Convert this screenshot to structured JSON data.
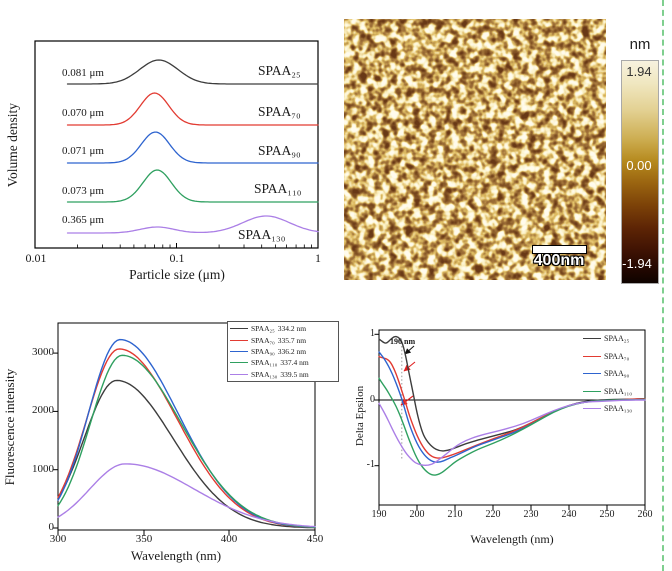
{
  "afm": {
    "scale_bar_label": "400nm",
    "colorbar": {
      "unit": "nm",
      "max": "1.94",
      "mid": "0.00",
      "min": "-1.94"
    }
  },
  "colors": {
    "black": "#3d3d3d",
    "red": "#e23b32",
    "blue": "#2e64cf",
    "green": "#2fa060",
    "purple": "#ab7fe6",
    "selection_dash": "#7fcf8f"
  },
  "chart_data": [
    {
      "type": "line",
      "title": "",
      "xlabel": "Particle size (μm)",
      "ylabel": "Volume density",
      "x_scale": "log",
      "xlim": [
        0.01,
        1
      ],
      "xtick_labels": [
        "0.01",
        "0.1",
        "1"
      ],
      "legend_position": "in-plot right",
      "series": [
        {
          "name": "SPAA₂₅",
          "size_label": "0.081 μm",
          "color": "#3d3d3d",
          "peaks": [
            {
              "center_um": 0.075,
              "height": 24,
              "sigma_decades": 0.135
            }
          ]
        },
        {
          "name": "SPAA₇₀",
          "size_label": "0.070 μm",
          "color": "#e23b32",
          "peaks": [
            {
              "center_um": 0.07,
              "height": 32,
              "sigma_decades": 0.1
            }
          ]
        },
        {
          "name": "SPAA₉₀",
          "size_label": "0.071 μm",
          "color": "#2e64cf",
          "peaks": [
            {
              "center_um": 0.071,
              "height": 31,
              "sigma_decades": 0.1
            }
          ]
        },
        {
          "name": "SPAA₁₁₀",
          "size_label": "0.073 μm",
          "color": "#2fa060",
          "peaks": [
            {
              "center_um": 0.073,
              "height": 32,
              "sigma_decades": 0.1
            }
          ]
        },
        {
          "name": "SPAA₁₃₀",
          "size_label": "0.365 μm",
          "color": "#ab7fe6",
          "peaks": [
            {
              "center_um": 0.073,
              "height": 6,
              "sigma_decades": 0.12
            },
            {
              "center_um": 0.43,
              "height": 17,
              "sigma_decades": 0.165
            }
          ]
        }
      ]
    },
    {
      "type": "line",
      "title": "",
      "xlabel": "Wavelength (nm)",
      "ylabel": "Fluorescence intensity",
      "xlim": [
        300,
        450
      ],
      "ylim": [
        0,
        3500
      ],
      "xtick_labels": [
        "300",
        "350",
        "400",
        "450"
      ],
      "ytick_labels": [
        "0",
        "1000",
        "2000",
        "3000"
      ],
      "legend_position": "top-right boxed",
      "series": [
        {
          "name": "SPAA₂₅",
          "peak_label": "334.2 nm",
          "peak_nm": 334.2,
          "peak_intensity": 2530,
          "sigma_left": 19,
          "sigma_right": 33,
          "color": "#3d3d3d"
        },
        {
          "name": "SPAA₇₀",
          "peak_label": "335.7 nm",
          "peak_nm": 335.7,
          "peak_intensity": 3070,
          "sigma_left": 19,
          "sigma_right": 34,
          "color": "#e23b32"
        },
        {
          "name": "SPAA₉₀",
          "peak_label": "336.2 nm",
          "peak_nm": 336.2,
          "peak_intensity": 3230,
          "sigma_left": 18.5,
          "sigma_right": 34,
          "color": "#2e64cf"
        },
        {
          "name": "SPAA₁₁₀",
          "peak_label": "337.4 nm",
          "peak_nm": 337.4,
          "peak_intensity": 2960,
          "sigma_left": 18.5,
          "sigma_right": 34.5,
          "color": "#2fa060"
        },
        {
          "name": "SPAA₁₃₀",
          "peak_label": "339.5 nm",
          "peak_nm": 339.5,
          "peak_intensity": 1100,
          "sigma_left": 21,
          "sigma_right": 40,
          "color": "#ab7fe6"
        }
      ]
    },
    {
      "type": "line",
      "title": "",
      "xlabel": "Wavelength (nm)",
      "ylabel": "Delta Epsilon",
      "xlim": [
        190,
        260
      ],
      "ylim": [
        -1.6,
        1.07
      ],
      "xtick_labels": [
        "190",
        "200",
        "210",
        "220",
        "230",
        "240",
        "250",
        "260"
      ],
      "ytick_labels": [
        "1",
        "0",
        "-1"
      ],
      "annotation": "196 nm",
      "legend_position": "top-right",
      "series": [
        {
          "name": "SPAA₂₅",
          "color": "#3d3d3d",
          "points": [
            [
              190,
              0.93
            ],
            [
              191,
              0.88
            ],
            [
              192,
              0.86
            ],
            [
              193,
              0.92
            ],
            [
              194,
              0.97
            ],
            [
              195,
              0.96
            ],
            [
              196,
              0.9
            ],
            [
              197,
              0.68
            ],
            [
              198,
              0.38
            ],
            [
              199,
              0.1
            ],
            [
              200,
              -0.2
            ],
            [
              201,
              -0.42
            ],
            [
              202,
              -0.58
            ],
            [
              204,
              -0.72
            ],
            [
              206,
              -0.78
            ],
            [
              208,
              -0.77
            ],
            [
              210,
              -0.73
            ],
            [
              213,
              -0.66
            ],
            [
              216,
              -0.61
            ],
            [
              220,
              -0.55
            ],
            [
              224,
              -0.49
            ],
            [
              228,
              -0.41
            ],
            [
              232,
              -0.29
            ],
            [
              236,
              -0.17
            ],
            [
              240,
              -0.08
            ],
            [
              244,
              -0.02
            ],
            [
              248,
              0
            ],
            [
              252,
              0.01
            ],
            [
              256,
              0.01
            ],
            [
              260,
              0.02
            ]
          ]
        },
        {
          "name": "SPAA₇₀",
          "color": "#e23b32",
          "points": [
            [
              190,
              0.66
            ],
            [
              191,
              0.64
            ],
            [
              192,
              0.63
            ],
            [
              193,
              0.58
            ],
            [
              194,
              0.47
            ],
            [
              195,
              0.32
            ],
            [
              196,
              0.14
            ],
            [
              197,
              -0.04
            ],
            [
              198,
              -0.24
            ],
            [
              200,
              -0.55
            ],
            [
              202,
              -0.76
            ],
            [
              204,
              -0.87
            ],
            [
              206,
              -0.89
            ],
            [
              208,
              -0.86
            ],
            [
              210,
              -0.82
            ],
            [
              213,
              -0.75
            ],
            [
              216,
              -0.68
            ],
            [
              220,
              -0.59
            ],
            [
              224,
              -0.51
            ],
            [
              228,
              -0.41
            ],
            [
              232,
              -0.29
            ],
            [
              236,
              -0.17
            ],
            [
              240,
              -0.08
            ],
            [
              244,
              -0.03
            ],
            [
              248,
              -0.01
            ],
            [
              252,
              0
            ],
            [
              256,
              0.01
            ],
            [
              260,
              0.02
            ]
          ]
        },
        {
          "name": "SPAA₉₀",
          "color": "#2e64cf",
          "points": [
            [
              190,
              0.73
            ],
            [
              191,
              0.66
            ],
            [
              192,
              0.57
            ],
            [
              193,
              0.46
            ],
            [
              194,
              0.33
            ],
            [
              195,
              0.18
            ],
            [
              196,
              0.02
            ],
            [
              197,
              -0.18
            ],
            [
              198,
              -0.38
            ],
            [
              200,
              -0.67
            ],
            [
              202,
              -0.85
            ],
            [
              204,
              -0.94
            ],
            [
              206,
              -0.95
            ],
            [
              208,
              -0.9
            ],
            [
              210,
              -0.85
            ],
            [
              213,
              -0.77
            ],
            [
              216,
              -0.69
            ],
            [
              220,
              -0.61
            ],
            [
              224,
              -0.53
            ],
            [
              228,
              -0.43
            ],
            [
              232,
              -0.31
            ],
            [
              236,
              -0.18
            ],
            [
              240,
              -0.08
            ],
            [
              244,
              -0.03
            ],
            [
              248,
              -0.01
            ],
            [
              252,
              0
            ],
            [
              256,
              0
            ],
            [
              260,
              0.01
            ]
          ]
        },
        {
          "name": "SPAA₁₁₀",
          "color": "#2fa060",
          "points": [
            [
              190,
              0.33
            ],
            [
              191,
              0.24
            ],
            [
              192,
              0.16
            ],
            [
              193,
              0.06
            ],
            [
              194,
              -0.04
            ],
            [
              195,
              -0.16
            ],
            [
              196,
              -0.3
            ],
            [
              197,
              -0.46
            ],
            [
              198,
              -0.62
            ],
            [
              200,
              -0.9
            ],
            [
              202,
              -1.07
            ],
            [
              204,
              -1.15
            ],
            [
              206,
              -1.13
            ],
            [
              208,
              -1.04
            ],
            [
              210,
              -0.94
            ],
            [
              213,
              -0.84
            ],
            [
              216,
              -0.75
            ],
            [
              220,
              -0.66
            ],
            [
              224,
              -0.56
            ],
            [
              228,
              -0.44
            ],
            [
              232,
              -0.31
            ],
            [
              236,
              -0.18
            ],
            [
              240,
              -0.09
            ],
            [
              244,
              -0.03
            ],
            [
              248,
              -0.01
            ],
            [
              252,
              0
            ],
            [
              256,
              0
            ],
            [
              260,
              0.01
            ]
          ]
        },
        {
          "name": "SPAA₁₃₀",
          "color": "#ab7fe6",
          "points": [
            [
              190,
              -0.05
            ],
            [
              191,
              -0.15
            ],
            [
              192,
              -0.26
            ],
            [
              193,
              -0.38
            ],
            [
              194,
              -0.5
            ],
            [
              195,
              -0.61
            ],
            [
              196,
              -0.71
            ],
            [
              197,
              -0.8
            ],
            [
              198,
              -0.87
            ],
            [
              199,
              -0.93
            ],
            [
              200,
              -0.97
            ],
            [
              202,
              -1
            ],
            [
              204,
              -0.98
            ],
            [
              206,
              -0.9
            ],
            [
              208,
              -0.81
            ],
            [
              210,
              -0.71
            ],
            [
              213,
              -0.61
            ],
            [
              216,
              -0.55
            ],
            [
              220,
              -0.49
            ],
            [
              224,
              -0.43
            ],
            [
              228,
              -0.36
            ],
            [
              232,
              -0.26
            ],
            [
              236,
              -0.16
            ],
            [
              240,
              -0.08
            ],
            [
              244,
              -0.03
            ],
            [
              248,
              -0.02
            ],
            [
              252,
              -0.01
            ],
            [
              256,
              0
            ],
            [
              260,
              0
            ]
          ]
        }
      ]
    }
  ]
}
